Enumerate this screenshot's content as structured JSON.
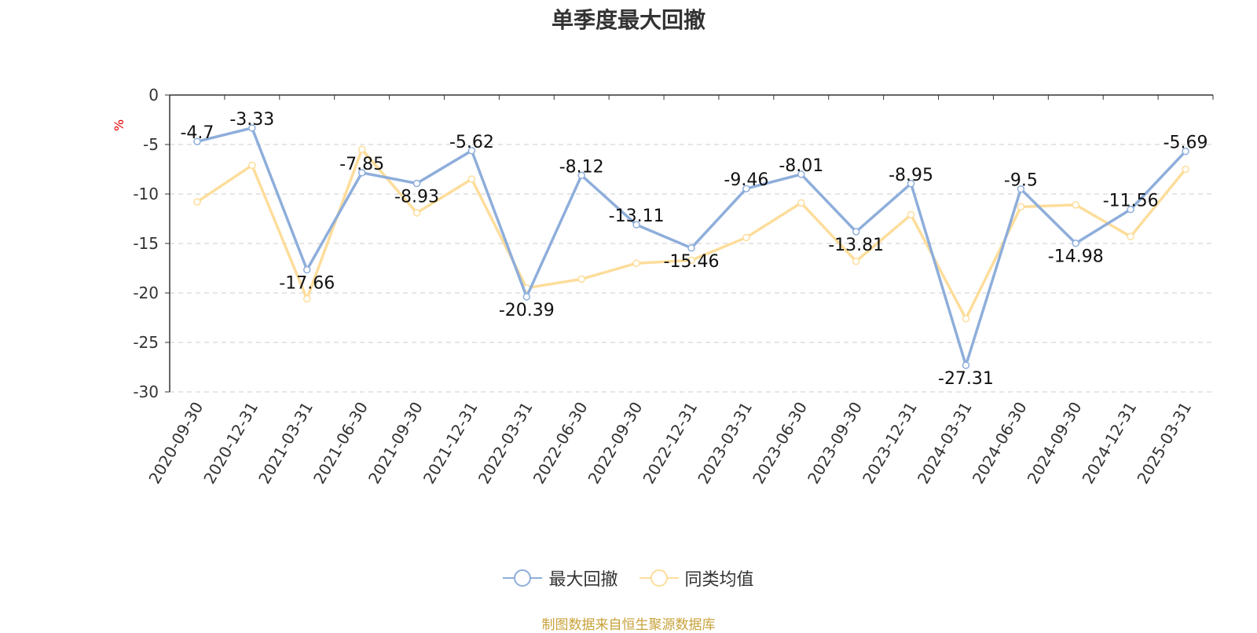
{
  "chart_data": {
    "type": "line",
    "title": "单季度最大回撤",
    "ylabel": "%",
    "categories": [
      "2020-09-30",
      "2020-12-31",
      "2021-03-31",
      "2021-06-30",
      "2021-09-30",
      "2021-12-31",
      "2022-03-31",
      "2022-06-30",
      "2022-09-30",
      "2022-12-31",
      "2023-03-31",
      "2023-06-30",
      "2023-09-30",
      "2023-12-31",
      "2024-03-31",
      "2024-06-30",
      "2024-09-30",
      "2024-12-31",
      "2025-03-31"
    ],
    "ylim": [
      -30,
      0
    ],
    "yticks": [
      0,
      -5,
      -10,
      -15,
      -20,
      -25,
      -30
    ],
    "grid": true,
    "legend_position": "bottom",
    "series": [
      {
        "name": "最大回撤",
        "color": "#8eaedb",
        "values": [
          -4.7,
          -3.33,
          -17.66,
          -7.85,
          -8.93,
          -5.62,
          -20.39,
          -8.12,
          -13.11,
          -15.46,
          -9.46,
          -8.01,
          -13.81,
          -8.95,
          -27.31,
          -9.5,
          -14.98,
          -11.56,
          -5.69
        ],
        "labels": [
          "-4.7",
          "-3.33",
          "-17.66",
          "-7.85",
          "-8.93",
          "-5.62",
          "-20.39",
          "-8.12",
          "-13.11",
          "-15.46",
          "-9.46",
          "-8.01",
          "-13.81",
          "-8.95",
          "-27.31",
          "-9.5",
          "-14.98",
          "-11.56",
          "-5.69"
        ]
      },
      {
        "name": "同类均值",
        "color": "#fddd9b",
        "values": [
          -10.8,
          -7.1,
          -20.6,
          -5.5,
          -11.9,
          -8.5,
          -19.5,
          -18.6,
          -17.0,
          -16.7,
          -14.4,
          -10.9,
          -16.8,
          -12.1,
          -22.6,
          -11.3,
          -11.1,
          -14.3,
          -7.5
        ]
      }
    ]
  },
  "footer": {
    "source": "制图数据来自恒生聚源数据库"
  }
}
